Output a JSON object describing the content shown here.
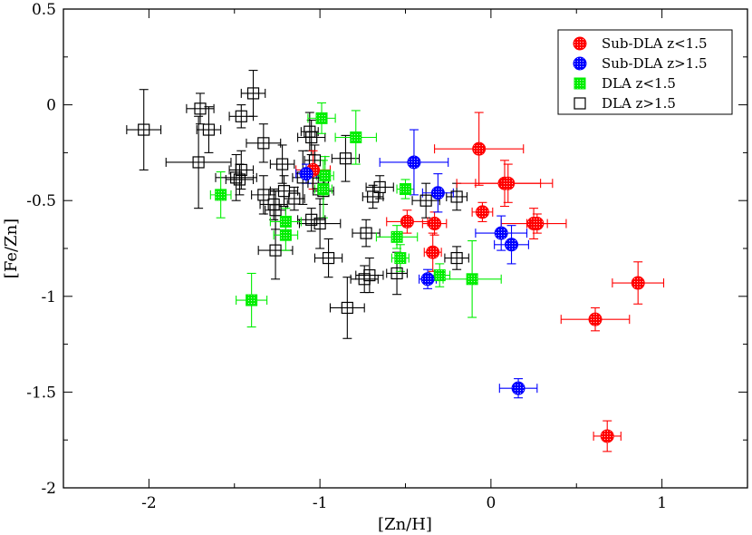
{
  "chart_data": {
    "type": "scatter",
    "title": "",
    "xlabel": "[Zn/H]",
    "ylabel": "[Fe/Zn]",
    "xlim": [
      -2.5,
      1.5
    ],
    "ylim": [
      -2.0,
      0.5
    ],
    "xticks": [
      -2,
      -1,
      0,
      1
    ],
    "xtick_labels": [
      "-2",
      "-1",
      "0",
      "1"
    ],
    "yticks": [
      -2,
      -1.5,
      -1,
      -0.5,
      0,
      0.5
    ],
    "ytick_labels": [
      "-2",
      "-1.5",
      "-1",
      "-0.5",
      "0",
      "0.5"
    ],
    "grid": false,
    "legend_position": "top-right",
    "colors": {
      "subdla_low": "#ff0000",
      "subdla_high": "#0000ff",
      "dla_low": "#00ee00",
      "dla_high": "#000000"
    },
    "series": [
      {
        "name": "Sub-DLA z<1.5",
        "marker": "circle",
        "color": "#ff0000",
        "points": [
          {
            "x": -0.07,
            "y": -0.23,
            "xerr": 0.26,
            "yerr": 0.19
          },
          {
            "x": 0.08,
            "y": -0.41,
            "xerr": 0.28,
            "yerr": 0.12
          },
          {
            "x": 0.1,
            "y": -0.41,
            "xerr": 0.19,
            "yerr": 0.1
          },
          {
            "x": -0.05,
            "y": -0.56,
            "xerr": 0.06,
            "yerr": 0.05
          },
          {
            "x": 0.25,
            "y": -0.62,
            "xerr": 0.19,
            "yerr": 0.08
          },
          {
            "x": 0.27,
            "y": -0.62,
            "xerr": 0.06,
            "yerr": 0.05
          },
          {
            "x": -0.49,
            "y": -0.61,
            "xerr": 0.12,
            "yerr": 0.06
          },
          {
            "x": -0.33,
            "y": -0.62,
            "xerr": 0.07,
            "yerr": 0.06
          },
          {
            "x": -0.34,
            "y": -0.77,
            "xerr": 0.05,
            "yerr": 0.1
          },
          {
            "x": -1.04,
            "y": -0.34,
            "xerr": 0.1,
            "yerr": 0.1
          },
          {
            "x": 0.86,
            "y": -0.93,
            "xerr": 0.15,
            "yerr": 0.11
          },
          {
            "x": 0.61,
            "y": -1.12,
            "xerr": 0.2,
            "yerr": 0.06
          },
          {
            "x": 0.68,
            "y": -1.73,
            "xerr": 0.08,
            "yerr": 0.08
          }
        ]
      },
      {
        "name": "Sub-DLA z>1.5",
        "marker": "circle",
        "color": "#0000ff",
        "points": [
          {
            "x": -0.45,
            "y": -0.3,
            "xerr": 0.2,
            "yerr": 0.17
          },
          {
            "x": -0.31,
            "y": -0.46,
            "xerr": 0.09,
            "yerr": 0.1
          },
          {
            "x": -1.08,
            "y": -0.36,
            "xerr": 0.06,
            "yerr": 0.05
          },
          {
            "x": 0.06,
            "y": -0.67,
            "xerr": 0.15,
            "yerr": 0.09
          },
          {
            "x": 0.12,
            "y": -0.73,
            "xerr": 0.1,
            "yerr": 0.1
          },
          {
            "x": -0.37,
            "y": -0.91,
            "xerr": 0.05,
            "yerr": 0.05
          },
          {
            "x": 0.16,
            "y": -1.48,
            "xerr": 0.11,
            "yerr": 0.05
          }
        ]
      },
      {
        "name": "DLA z<1.5",
        "marker": "square-filled",
        "color": "#00ee00",
        "points": [
          {
            "x": -1.58,
            "y": -0.47,
            "xerr": 0.06,
            "yerr": 0.12
          },
          {
            "x": -1.4,
            "y": -1.02,
            "xerr": 0.09,
            "yerr": 0.14
          },
          {
            "x": -0.99,
            "y": -0.07,
            "xerr": 0.08,
            "yerr": 0.08
          },
          {
            "x": -0.79,
            "y": -0.17,
            "xerr": 0.12,
            "yerr": 0.14
          },
          {
            "x": -0.97,
            "y": -0.37,
            "xerr": 0.05,
            "yerr": 0.1
          },
          {
            "x": -0.98,
            "y": -0.44,
            "xerr": 0.05,
            "yerr": 0.15
          },
          {
            "x": -1.2,
            "y": -0.61,
            "xerr": 0.09,
            "yerr": 0.07
          },
          {
            "x": -1.2,
            "y": -0.68,
            "xerr": 0.07,
            "yerr": 0.08
          },
          {
            "x": -0.5,
            "y": -0.44,
            "xerr": 0.05,
            "yerr": 0.05
          },
          {
            "x": -0.55,
            "y": -0.69,
            "xerr": 0.12,
            "yerr": 0.06
          },
          {
            "x": -0.53,
            "y": -0.8,
            "xerr": 0.05,
            "yerr": 0.07
          },
          {
            "x": -0.3,
            "y": -0.89,
            "xerr": 0.06,
            "yerr": 0.06
          },
          {
            "x": -0.11,
            "y": -0.91,
            "xerr": 0.17,
            "yerr": 0.2
          }
        ]
      },
      {
        "name": "DLA z>1.5",
        "marker": "square-open",
        "color": "#000000",
        "points": [
          {
            "x": -2.03,
            "y": -0.13,
            "xerr": 0.1,
            "yerr": 0.21
          },
          {
            "x": -1.7,
            "y": -0.02,
            "xerr": 0.08,
            "yerr": 0.08
          },
          {
            "x": -1.65,
            "y": -0.13,
            "xerr": 0.07,
            "yerr": 0.12
          },
          {
            "x": -1.71,
            "y": -0.3,
            "xerr": 0.19,
            "yerr": 0.24
          },
          {
            "x": -1.46,
            "y": -0.06,
            "xerr": 0.07,
            "yerr": 0.06
          },
          {
            "x": -1.39,
            "y": 0.06,
            "xerr": 0.07,
            "yerr": 0.12
          },
          {
            "x": -1.33,
            "y": -0.2,
            "xerr": 0.1,
            "yerr": 0.1
          },
          {
            "x": -1.46,
            "y": -0.34,
            "xerr": 0.07,
            "yerr": 0.1
          },
          {
            "x": -1.49,
            "y": -0.38,
            "xerr": 0.12,
            "yerr": 0.12
          },
          {
            "x": -1.47,
            "y": -0.39,
            "xerr": 0.08,
            "yerr": 0.08
          },
          {
            "x": -1.33,
            "y": -0.47,
            "xerr": 0.07,
            "yerr": 0.1
          },
          {
            "x": -1.27,
            "y": -0.52,
            "xerr": 0.08,
            "yerr": 0.08
          },
          {
            "x": -1.22,
            "y": -0.31,
            "xerr": 0.07,
            "yerr": 0.1
          },
          {
            "x": -1.21,
            "y": -0.45,
            "xerr": 0.08,
            "yerr": 0.08
          },
          {
            "x": -1.26,
            "y": -0.55,
            "xerr": 0.06,
            "yerr": 0.1
          },
          {
            "x": -1.15,
            "y": -0.49,
            "xerr": 0.06,
            "yerr": 0.06
          },
          {
            "x": -1.1,
            "y": -0.38,
            "xerr": 0.06,
            "yerr": 0.14
          },
          {
            "x": -1.06,
            "y": -0.14,
            "xerr": 0.05,
            "yerr": 0.1
          },
          {
            "x": -1.05,
            "y": -0.17,
            "xerr": 0.08,
            "yerr": 0.09
          },
          {
            "x": -1.03,
            "y": -0.29,
            "xerr": 0.06,
            "yerr": 0.08
          },
          {
            "x": -1.01,
            "y": -0.41,
            "xerr": 0.06,
            "yerr": 0.06
          },
          {
            "x": -0.98,
            "y": -0.45,
            "xerr": 0.06,
            "yerr": 0.07
          },
          {
            "x": -1.05,
            "y": -0.6,
            "xerr": 0.08,
            "yerr": 0.06
          },
          {
            "x": -1.0,
            "y": -0.62,
            "xerr": 0.12,
            "yerr": 0.13
          },
          {
            "x": -1.26,
            "y": -0.76,
            "xerr": 0.1,
            "yerr": 0.15
          },
          {
            "x": -0.95,
            "y": -0.8,
            "xerr": 0.08,
            "yerr": 0.1
          },
          {
            "x": -0.85,
            "y": -0.28,
            "xerr": 0.08,
            "yerr": 0.12
          },
          {
            "x": -0.84,
            "y": -1.06,
            "xerr": 0.1,
            "yerr": 0.16
          },
          {
            "x": -0.73,
            "y": -0.67,
            "xerr": 0.08,
            "yerr": 0.07
          },
          {
            "x": -0.69,
            "y": -0.48,
            "xerr": 0.06,
            "yerr": 0.06
          },
          {
            "x": -0.65,
            "y": -0.43,
            "xerr": 0.08,
            "yerr": 0.06
          },
          {
            "x": -0.71,
            "y": -0.89,
            "xerr": 0.08,
            "yerr": 0.09
          },
          {
            "x": -0.74,
            "y": -0.91,
            "xerr": 0.08,
            "yerr": 0.07
          },
          {
            "x": -0.55,
            "y": -0.88,
            "xerr": 0.06,
            "yerr": 0.11
          },
          {
            "x": -0.38,
            "y": -0.5,
            "xerr": 0.08,
            "yerr": 0.09
          },
          {
            "x": -0.2,
            "y": -0.48,
            "xerr": 0.06,
            "yerr": 0.07
          },
          {
            "x": -0.2,
            "y": -0.8,
            "xerr": 0.07,
            "yerr": 0.06
          }
        ]
      }
    ]
  }
}
